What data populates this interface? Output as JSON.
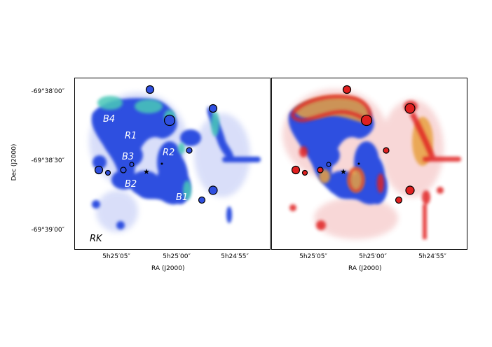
{
  "figure": {
    "y_axis_title": "Dec (J2000)",
    "x_axis_title": "RA (J2000)",
    "y_ticks": [
      "-69°38′00″",
      "-69°38′30″",
      "-69°39′00″"
    ],
    "x_ticks": [
      "5h25′05″",
      "5h25′00″",
      "5h24′55″"
    ],
    "panel_tag": "RK",
    "region_labels": [
      "B4",
      "R1",
      "B3",
      "R2",
      "B2",
      "B1"
    ],
    "colors": {
      "left_map_base": "#3050e0",
      "left_map_highlight": "#50d0b0",
      "right_map_emission": "#e02020",
      "right_map_glow": "#f0a040"
    }
  }
}
